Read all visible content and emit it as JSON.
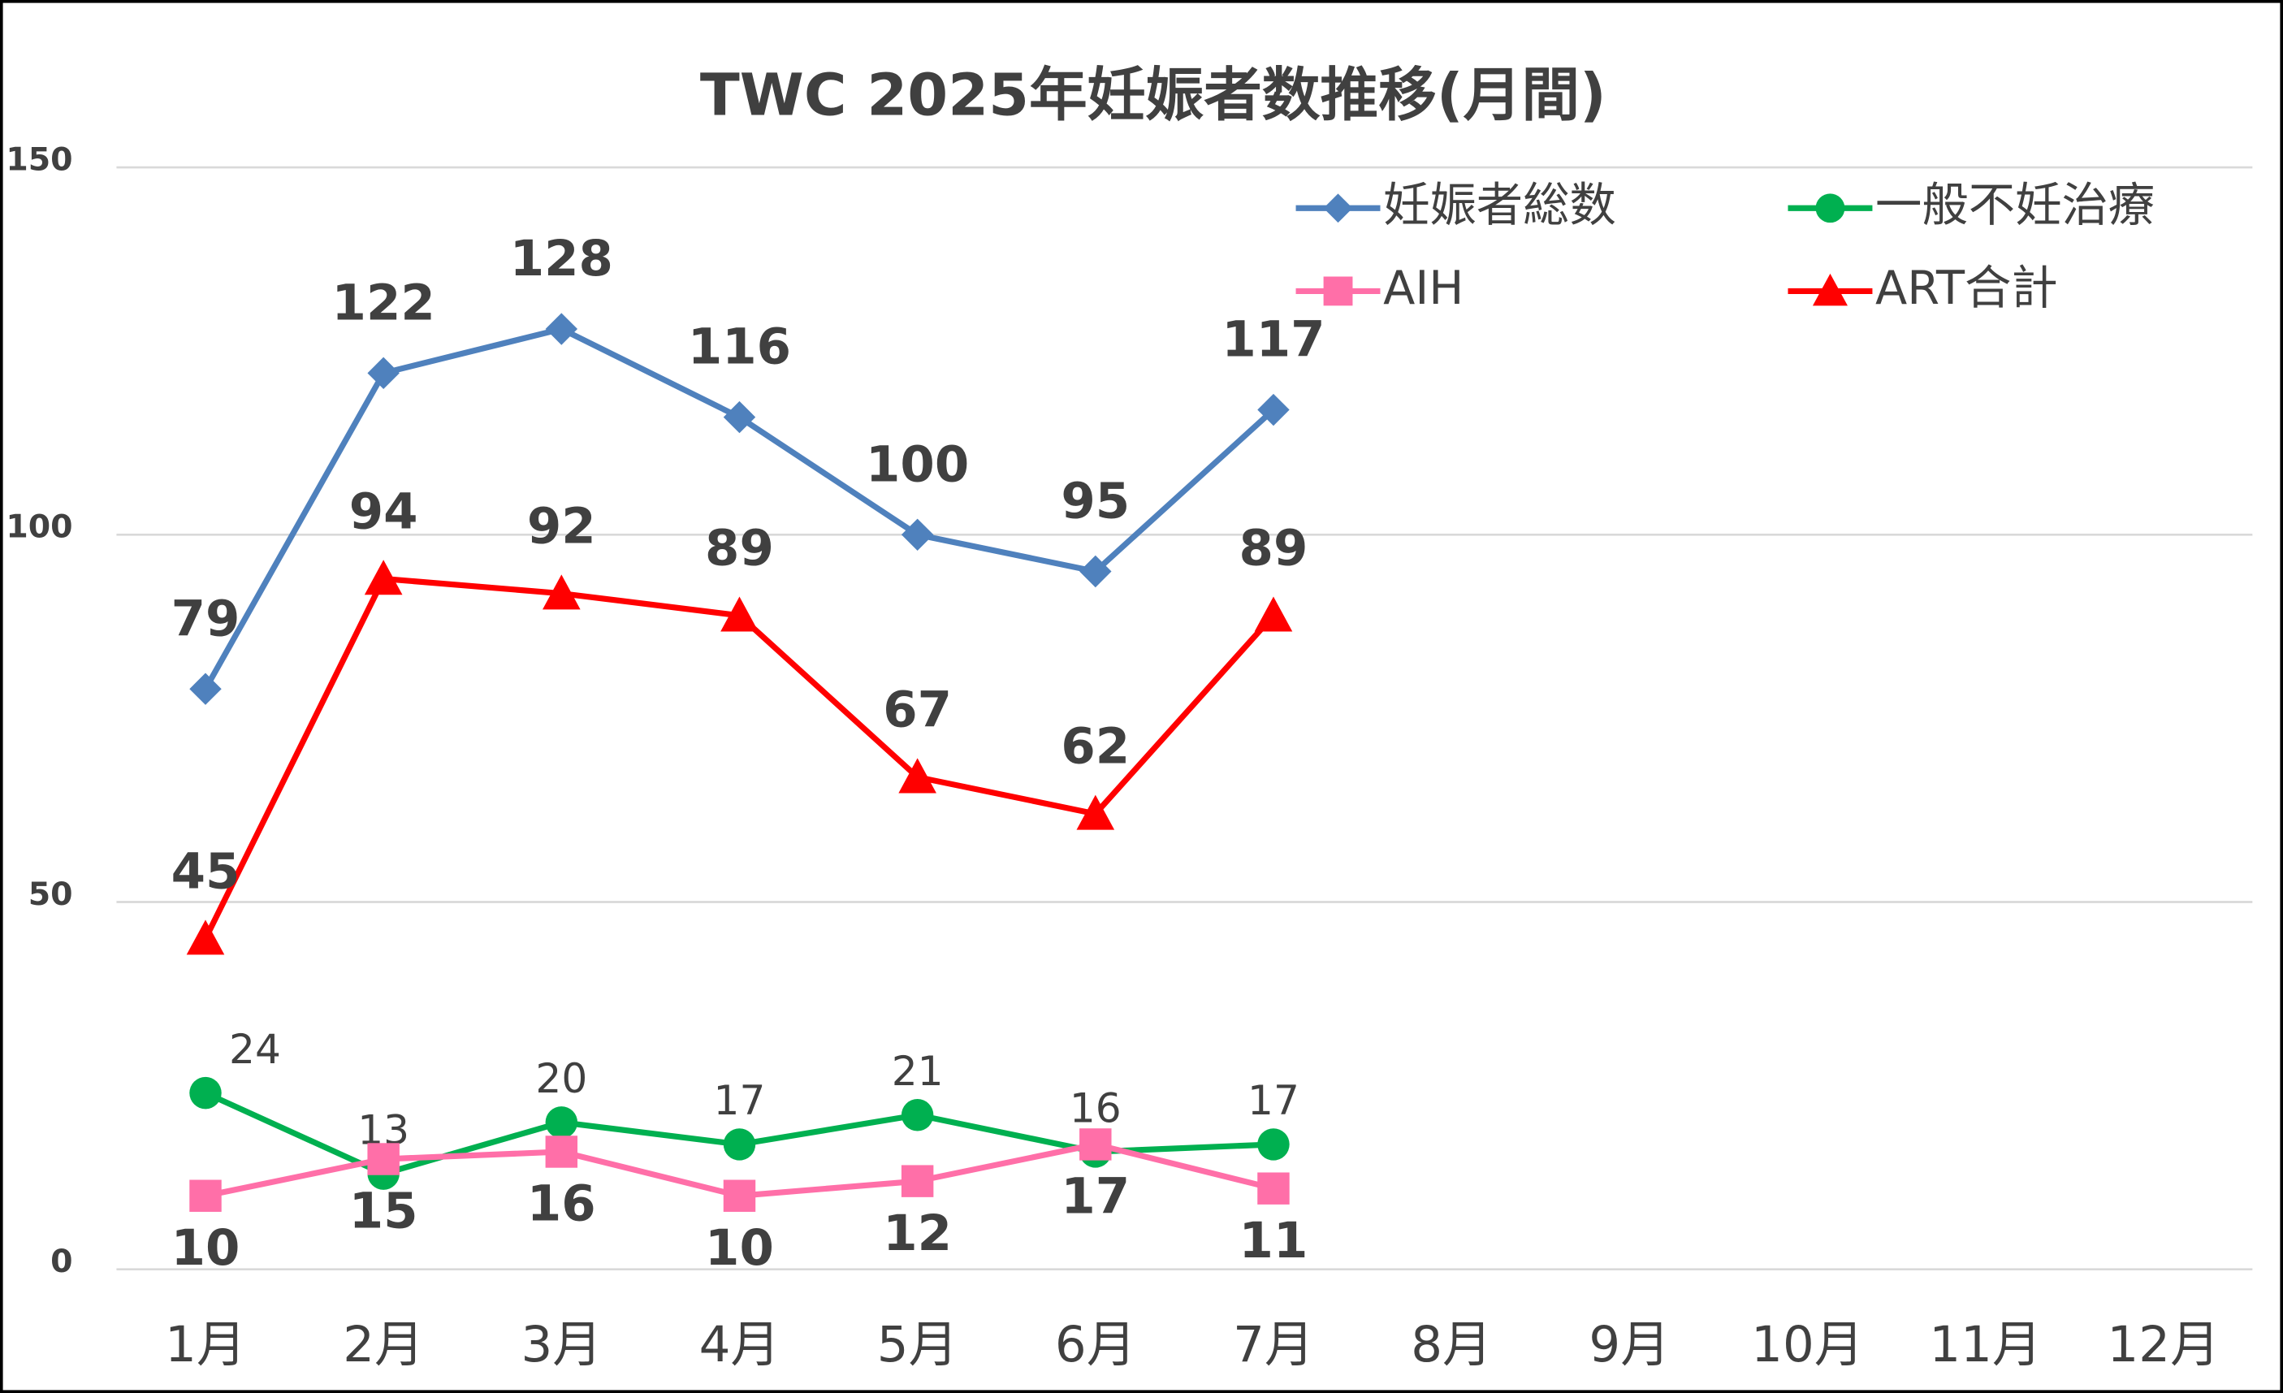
{
  "chart_data": {
    "type": "line",
    "title": "TWC 2025年妊娠者数推移(月間)",
    "categories": [
      "1月",
      "2月",
      "3月",
      "4月",
      "5月",
      "6月",
      "7月",
      "8月",
      "9月",
      "10月",
      "11月",
      "12月"
    ],
    "series": [
      {
        "name": "妊娠者総数",
        "color": "#4f81bd",
        "marker": "diamond",
        "values": [
          79,
          122,
          128,
          116,
          100,
          95,
          117,
          null,
          null,
          null,
          null,
          null
        ]
      },
      {
        "name": "一般不妊治療",
        "color": "#00b050",
        "marker": "circle",
        "values": [
          24,
          13,
          20,
          17,
          21,
          16,
          17,
          null,
          null,
          null,
          null,
          null
        ]
      },
      {
        "name": "AIH",
        "color": "#ff6fa8",
        "marker": "square",
        "values": [
          10,
          15,
          16,
          10,
          12,
          17,
          11,
          null,
          null,
          null,
          null,
          null
        ]
      },
      {
        "name": "ART合計",
        "color": "#ff0000",
        "marker": "triangle",
        "values": [
          45,
          94,
          92,
          89,
          67,
          62,
          89,
          null,
          null,
          null,
          null,
          null
        ]
      }
    ],
    "ylim": [
      0,
      150
    ],
    "yticks": [
      0,
      50,
      100,
      150
    ],
    "grid": true
  }
}
